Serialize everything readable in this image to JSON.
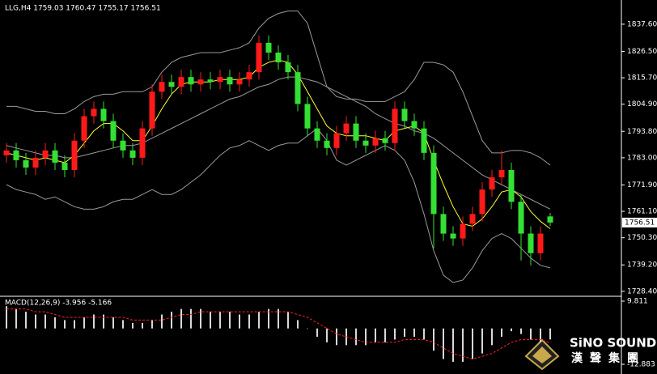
{
  "chart_data": [
    {
      "type": "candlestick",
      "title": "LLG,H4 1759.03 1760.47 1755.17 1756.51",
      "up_color": "#ff1a1a",
      "down_color": "#33e033",
      "open": [
        1784,
        1786,
        1782,
        1779,
        1783,
        1786,
        1781,
        1778,
        1790,
        1800,
        1803,
        1798,
        1790,
        1786,
        1783,
        1795,
        1810,
        1814,
        1812,
        1816,
        1813,
        1815,
        1814,
        1816,
        1813,
        1815,
        1818,
        1830,
        1826,
        1822,
        1818,
        1805,
        1795,
        1790,
        1787,
        1793,
        1797,
        1790,
        1788,
        1791,
        1789,
        1803,
        1798,
        1795,
        1785,
        1760,
        1752,
        1750,
        1756,
        1760,
        1770,
        1775,
        1778,
        1765,
        1752,
        1744,
        1759.03
      ],
      "high": [
        1789,
        1789,
        1785,
        1786,
        1789,
        1789,
        1784,
        1793,
        1803,
        1806,
        1806,
        1801,
        1793,
        1789,
        1798,
        1813,
        1817,
        1817,
        1819,
        1819,
        1818,
        1818,
        1819,
        1819,
        1818,
        1821,
        1833,
        1833,
        1829,
        1825,
        1821,
        1808,
        1798,
        1793,
        1796,
        1800,
        1800,
        1793,
        1794,
        1794,
        1806,
        1806,
        1801,
        1798,
        1788,
        1763,
        1755,
        1759,
        1763,
        1773,
        1778,
        1786,
        1781,
        1768,
        1755,
        1755,
        1760.47
      ],
      "low": [
        1781,
        1779,
        1776,
        1776,
        1780,
        1778,
        1775,
        1775,
        1787,
        1797,
        1795,
        1787,
        1783,
        1780,
        1780,
        1792,
        1807,
        1809,
        1809,
        1810,
        1810,
        1811,
        1811,
        1810,
        1810,
        1812,
        1815,
        1823,
        1819,
        1815,
        1802,
        1792,
        1787,
        1784,
        1784,
        1790,
        1787,
        1785,
        1785,
        1786,
        1786,
        1795,
        1792,
        1782,
        1746,
        1749,
        1747,
        1747,
        1753,
        1757,
        1767,
        1772,
        1762,
        1741,
        1739,
        1741,
        1755.17
      ],
      "close": [
        1786,
        1782,
        1779,
        1783,
        1786,
        1781,
        1778,
        1790,
        1800,
        1803,
        1798,
        1790,
        1786,
        1783,
        1795,
        1810,
        1814,
        1812,
        1816,
        1813,
        1815,
        1814,
        1816,
        1813,
        1815,
        1818,
        1830,
        1826,
        1822,
        1818,
        1805,
        1795,
        1790,
        1787,
        1793,
        1797,
        1790,
        1788,
        1791,
        1789,
        1803,
        1798,
        1795,
        1785,
        1760,
        1752,
        1750,
        1756,
        1760,
        1770,
        1775,
        1778,
        1765,
        1752,
        1744,
        1752,
        1756.51
      ],
      "overlays": [
        {
          "color": "#9a9a9a",
          "values": [
            1804,
            1804,
            1803,
            1802,
            1802,
            1801,
            1801,
            1803,
            1806,
            1808,
            1809,
            1809,
            1810,
            1810,
            1810,
            1812,
            1818,
            1822,
            1824,
            1825,
            1826,
            1826,
            1826,
            1827,
            1828,
            1830,
            1836,
            1840,
            1842,
            1843,
            1843,
            1838,
            1825,
            1812,
            1808,
            1807,
            1807,
            1806,
            1806,
            1806,
            1808,
            1810,
            1815,
            1822,
            1822,
            1821,
            1818,
            1810,
            1800,
            1790,
            1785,
            1785,
            1786,
            1786,
            1785,
            1783,
            1780
          ]
        },
        {
          "color": "#9a9a9a",
          "values": [
            1788,
            1787,
            1786,
            1785,
            1784,
            1784,
            1783,
            1783,
            1784,
            1785,
            1786,
            1787,
            1788,
            1788,
            1789,
            1791,
            1793,
            1795,
            1797,
            1799,
            1801,
            1803,
            1805,
            1807,
            1808,
            1810,
            1812,
            1813,
            1815,
            1816,
            1816,
            1815,
            1814,
            1812,
            1810,
            1808,
            1806,
            1804,
            1801,
            1799,
            1797,
            1796,
            1794,
            1793,
            1791,
            1788,
            1785,
            1782,
            1779,
            1776,
            1774,
            1772,
            1770,
            1768,
            1766,
            1764,
            1762
          ]
        },
        {
          "color": "#9a9a9a",
          "values": [
            1772,
            1770,
            1769,
            1768,
            1766,
            1767,
            1765,
            1763,
            1762,
            1762,
            1763,
            1765,
            1766,
            1766,
            1768,
            1770,
            1768,
            1768,
            1770,
            1773,
            1776,
            1780,
            1784,
            1787,
            1788,
            1790,
            1788,
            1786,
            1788,
            1789,
            1789,
            1792,
            1795,
            1790,
            1782,
            1780,
            1782,
            1784,
            1786,
            1788,
            1786,
            1782,
            1773,
            1760,
            1745,
            1735,
            1732,
            1733,
            1738,
            1745,
            1750,
            1752,
            1750,
            1746,
            1742,
            1739,
            1738
          ]
        },
        {
          "color": "#ffff33",
          "values": [
            1785,
            1784,
            1783,
            1782,
            1783,
            1782,
            1781,
            1784,
            1789,
            1794,
            1797,
            1797,
            1794,
            1790,
            1790,
            1796,
            1803,
            1809,
            1813,
            1814,
            1814,
            1814,
            1815,
            1815,
            1815,
            1816,
            1820,
            1822,
            1823,
            1822,
            1817,
            1810,
            1803,
            1796,
            1793,
            1792,
            1792,
            1792,
            1791,
            1790,
            1794,
            1795,
            1796,
            1793,
            1782,
            1772,
            1763,
            1756,
            1755,
            1758,
            1763,
            1769,
            1770,
            1767,
            1761,
            1757,
            1754
          ]
        }
      ],
      "ylim": [
        1726.7,
        1847.5
      ],
      "yticks": [
        {
          "value": 1837.6,
          "label": "1837.60"
        },
        {
          "value": 1826.5,
          "label": "1826.50"
        },
        {
          "value": 1815.7,
          "label": "1815.70"
        },
        {
          "value": 1804.9,
          "label": "1804.90"
        },
        {
          "value": 1793.8,
          "label": "1793.80"
        },
        {
          "value": 1783.0,
          "label": "1783.00"
        },
        {
          "value": 1771.9,
          "label": "1771.90"
        },
        {
          "value": 1761.1,
          "label": "1761.10"
        },
        {
          "value": 1750.3,
          "label": "1750.30"
        },
        {
          "value": 1739.2,
          "label": "1739.20"
        },
        {
          "value": 1728.4,
          "label": "1728.40"
        }
      ]
    },
    {
      "type": "macd",
      "title": "MACD(12,26,9) -3.956 -5.166",
      "histogram": {
        "color": "#d8d8d8",
        "values": [
          8,
          7,
          6,
          5,
          5,
          4,
          3,
          3,
          4,
          5,
          5,
          4,
          3,
          2,
          2,
          3,
          5,
          6,
          7,
          7,
          7,
          6,
          6,
          6,
          5,
          5,
          6,
          7,
          7,
          6,
          3,
          0,
          -3,
          -5,
          -6,
          -6,
          -6,
          -6,
          -5,
          -5,
          -4,
          -3,
          -3,
          -4,
          -8,
          -11,
          -12,
          -12,
          -11,
          -9,
          -6,
          -3,
          -1,
          -2,
          -4,
          -5,
          -3.956
        ]
      },
      "signal": {
        "color": "#ff2020",
        "values": [
          7,
          7,
          7,
          6,
          6,
          5,
          4,
          4,
          4,
          4,
          4,
          4,
          4,
          3,
          3,
          3,
          3,
          4,
          5,
          5,
          6,
          6,
          6,
          6,
          6,
          6,
          6,
          6,
          6,
          6,
          5,
          4,
          2,
          0,
          -2,
          -3,
          -4,
          -5,
          -5,
          -5,
          -5,
          -4,
          -4,
          -4,
          -5,
          -7,
          -9,
          -10,
          -11,
          -10,
          -9,
          -7,
          -5,
          -4,
          -4,
          -4,
          -5.166
        ]
      },
      "ylim": [
        -12.883,
        9.811
      ],
      "yticks": [
        9.811,
        -12.883
      ]
    }
  ],
  "logo": {
    "name": "SiNO SOUND",
    "chinese": "漢聲集團"
  }
}
